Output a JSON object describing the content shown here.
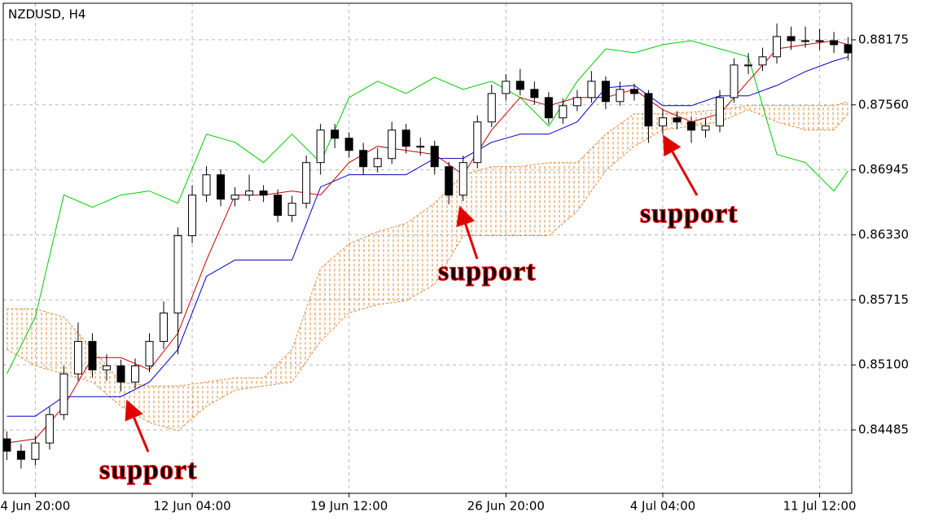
{
  "chart_data": {
    "type": "candlestick",
    "title": "NZDUSD, H4",
    "xlim": [
      -1,
      237
    ],
    "xticks": [
      {
        "value": 8,
        "label": "4 Jun 20:00"
      },
      {
        "value": 52,
        "label": "12 Jun 04:00"
      },
      {
        "value": 96,
        "label": "19 Jun 12:00"
      },
      {
        "value": 140,
        "label": "26 Jun 20:00"
      },
      {
        "value": 184,
        "label": "4 Jul 04:00"
      },
      {
        "value": 228,
        "label": "11 Jul 12:00"
      }
    ],
    "ylim": [
      0.83885,
      0.88521
    ],
    "yticks": [
      0.84485,
      {
        "value": 0.851,
        "label": "0.85100"
      },
      0.85715,
      {
        "value": 0.8633,
        "label": "0.86330"
      },
      0.86945,
      {
        "value": 0.8756,
        "label": "0.87560"
      },
      0.88175
    ],
    "grid": true,
    "candles": {
      "up_color": "#ffffff",
      "down_color": "#000000",
      "x": [
        0,
        4,
        8,
        12,
        16,
        20,
        24,
        28,
        32,
        36,
        40,
        44,
        48,
        52,
        56,
        60,
        64,
        68,
        72,
        76,
        80,
        84,
        88,
        92,
        96,
        100,
        104,
        108,
        112,
        116,
        120,
        124,
        128,
        132,
        136,
        140,
        144,
        148,
        152,
        156,
        160,
        164,
        168,
        172,
        176,
        180,
        184,
        188,
        192,
        196,
        200,
        204,
        208,
        212,
        216,
        220,
        224,
        228,
        232,
        236
      ],
      "open": [
        0.844,
        0.84284,
        0.84207,
        0.84361,
        0.8463,
        0.85015,
        0.85322,
        0.85053,
        0.85091,
        0.84938,
        0.85091,
        0.85322,
        0.85591,
        0.86322,
        0.86706,
        0.86898,
        0.86668,
        0.86706,
        0.86745,
        0.86706,
        0.86514,
        0.86629,
        0.87014,
        0.87321,
        0.87244,
        0.87129,
        0.86975,
        0.87052,
        0.87321,
        0.87168,
        0.87168,
        0.86975,
        0.86706,
        0.87014,
        0.87398,
        0.87667,
        0.87783,
        0.87706,
        0.87629,
        0.87437,
        0.87552,
        0.87629,
        0.87783,
        0.87591,
        0.87706,
        0.87667,
        0.8736,
        0.87437,
        0.87398,
        0.87321,
        0.8736,
        0.87629,
        0.87937,
        0.87937,
        0.88014,
        0.88206,
        0.88167,
        0.88167,
        0.88167,
        0.88129
      ],
      "high": [
        0.8447,
        0.8435,
        0.8443,
        0.847,
        0.8509,
        0.855,
        0.854,
        0.852,
        0.8515,
        0.8516,
        0.854,
        0.857,
        0.864,
        0.868,
        0.8698,
        0.8695,
        0.8678,
        0.869,
        0.868,
        0.8676,
        0.867,
        0.8708,
        0.8738,
        0.8738,
        0.873,
        0.872,
        0.8715,
        0.874,
        0.8738,
        0.8725,
        0.8722,
        0.8702,
        0.8708,
        0.8746,
        0.8775,
        0.8785,
        0.879,
        0.8778,
        0.8768,
        0.8762,
        0.877,
        0.8788,
        0.8783,
        0.8778,
        0.8776,
        0.877,
        0.8752,
        0.875,
        0.8745,
        0.8743,
        0.877,
        0.88,
        0.8805,
        0.881,
        0.8833,
        0.883,
        0.883,
        0.8828,
        0.8825,
        0.882
      ],
      "low": [
        0.842,
        0.8412,
        0.8415,
        0.843,
        0.8458,
        0.8495,
        0.8498,
        0.8495,
        0.8485,
        0.8488,
        0.8503,
        0.8525,
        0.852,
        0.8625,
        0.8664,
        0.866,
        0.866,
        0.8665,
        0.8664,
        0.8645,
        0.8645,
        0.8658,
        0.869,
        0.8715,
        0.8706,
        0.869,
        0.8692,
        0.87,
        0.871,
        0.8708,
        0.869,
        0.8662,
        0.8665,
        0.8696,
        0.8735,
        0.876,
        0.8765,
        0.8756,
        0.8738,
        0.8738,
        0.875,
        0.8758,
        0.8752,
        0.8755,
        0.876,
        0.872,
        0.8728,
        0.8733,
        0.872,
        0.8725,
        0.873,
        0.8758,
        0.8785,
        0.8788,
        0.8795,
        0.8808,
        0.881,
        0.8808,
        0.8805,
        0.8798
      ],
      "close": [
        0.84284,
        0.84207,
        0.84361,
        0.8463,
        0.85015,
        0.85322,
        0.85053,
        0.85091,
        0.84938,
        0.85091,
        0.85322,
        0.85591,
        0.86322,
        0.86706,
        0.86898,
        0.86668,
        0.86706,
        0.86745,
        0.86706,
        0.86514,
        0.86629,
        0.87014,
        0.87321,
        0.87244,
        0.87129,
        0.86975,
        0.87052,
        0.87321,
        0.87168,
        0.87168,
        0.86975,
        0.86706,
        0.87014,
        0.87398,
        0.87667,
        0.87783,
        0.87706,
        0.87629,
        0.87437,
        0.87552,
        0.87629,
        0.87783,
        0.87591,
        0.87706,
        0.87667,
        0.8736,
        0.87437,
        0.87398,
        0.87321,
        0.8736,
        0.87629,
        0.87937,
        0.87937,
        0.88014,
        0.88206,
        0.88167,
        0.88167,
        0.88167,
        0.88129,
        0.88052
      ]
    },
    "x": [
      0,
      8,
      16,
      24,
      32,
      40,
      48,
      56,
      64,
      72,
      80,
      88,
      96,
      104,
      112,
      120,
      128,
      136,
      144,
      152,
      160,
      168,
      176,
      184,
      192,
      200,
      208,
      216,
      224,
      232,
      236
    ],
    "cloud": {
      "color": "#e08a3c",
      "upper": [
        0.8563,
        0.8563,
        0.85553,
        0.85246,
        0.84938,
        0.849,
        0.849,
        0.84938,
        0.84977,
        0.84977,
        0.85246,
        0.86015,
        0.86245,
        0.86361,
        0.86438,
        0.8663,
        0.86899,
        0.86976,
        0.86976,
        0.87014,
        0.87014,
        0.87283,
        0.87475,
        0.87475,
        0.87491,
        0.87514,
        0.87552,
        0.87552,
        0.87552,
        0.87552,
        0.87591
      ],
      "lower": [
        0.85246,
        0.85092,
        0.85015,
        0.84938,
        0.84708,
        0.84554,
        0.84477,
        0.84708,
        0.84861,
        0.849,
        0.84938,
        0.85323,
        0.85592,
        0.85669,
        0.85707,
        0.85861,
        0.86322,
        0.86322,
        0.86322,
        0.86322,
        0.86553,
        0.86937,
        0.87168,
        0.87322,
        0.8736,
        0.87399,
        0.87514,
        0.87399,
        0.87322,
        0.87322,
        0.87475
      ]
    },
    "series": [
      {
        "color": "#00cc00",
        "values": [
          0.85015,
          0.85553,
          0.86707,
          0.86591,
          0.86707,
          0.86745,
          0.8663,
          0.87283,
          0.87206,
          0.87014,
          0.87283,
          0.87014,
          0.87629,
          0.87783,
          0.87668,
          0.87821,
          0.87706,
          0.87783,
          0.87629,
          0.8736,
          0.87783,
          0.8809,
          0.88052,
          0.88129,
          0.88167,
          0.8809,
          0.88014,
          0.87091,
          0.87014,
          0.86745,
          0.86937
        ]
      },
      {
        "color": "#0000cc",
        "values": [
          0.84615,
          0.84615,
          0.848,
          0.848,
          0.848,
          0.84938,
          0.85246,
          0.85938,
          0.86092,
          0.86092,
          0.86092,
          0.86783,
          0.86899,
          0.86899,
          0.86899,
          0.87053,
          0.87053,
          0.87206,
          0.87283,
          0.87283,
          0.87399,
          0.87721,
          0.87744,
          0.87552,
          0.87552,
          0.87645,
          0.87645,
          0.87744,
          0.87875,
          0.87975,
          0.88014
        ]
      },
      {
        "color": "#cc0000",
        "values": [
          0.84362,
          0.844,
          0.84708,
          0.85169,
          0.85169,
          0.85054,
          0.854,
          0.86092,
          0.86707,
          0.86707,
          0.86745,
          0.86707,
          0.87014,
          0.87168,
          0.87129,
          0.87091,
          0.86899,
          0.87322,
          0.87629,
          0.87552,
          0.87629,
          0.87629,
          0.87706,
          0.87514,
          0.87399,
          0.87475,
          0.87783,
          0.8809,
          0.88129,
          0.88167,
          0.88129
        ]
      }
    ],
    "annotations": [
      {
        "text": "support",
        "color": "#e00000"
      },
      {
        "text": "support",
        "color": "#e00000"
      },
      {
        "text": "support",
        "color": "#e00000"
      }
    ]
  }
}
